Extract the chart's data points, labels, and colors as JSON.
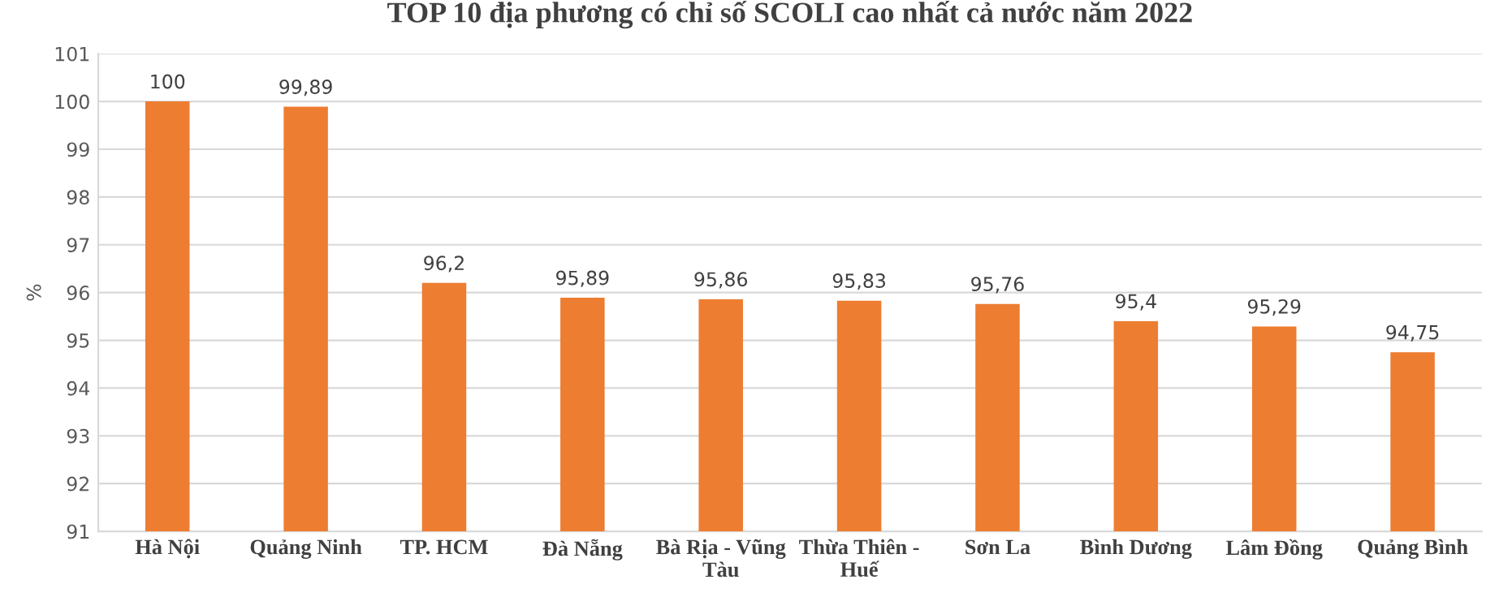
{
  "chart_data": {
    "type": "bar",
    "title": "TOP 10 địa phương có chỉ số SCOLI cao nhất cả nước năm 2022",
    "ylabel": "%",
    "categories": [
      "Hà Nội",
      "Quảng Ninh",
      "TP. HCM",
      "Đà Nẵng",
      "Bà Rịa - Vũng\nTàu",
      "Thừa Thiên -\nHuế",
      "Sơn La",
      "Bình Dương",
      "Lâm Đồng",
      "Quảng Bình"
    ],
    "values": [
      100,
      99.89,
      96.2,
      95.89,
      95.86,
      95.83,
      95.76,
      95.4,
      95.29,
      94.75
    ],
    "value_labels": [
      "100",
      "99,89",
      "96,2",
      "95,89",
      "95,86",
      "95,83",
      "95,76",
      "95,4",
      "95,29",
      "94,75"
    ],
    "color": "#ed7d31",
    "ylim": [
      91,
      101
    ],
    "yticks": [
      91,
      92,
      93,
      94,
      95,
      96,
      97,
      98,
      99,
      100,
      101
    ],
    "grid": "y"
  }
}
